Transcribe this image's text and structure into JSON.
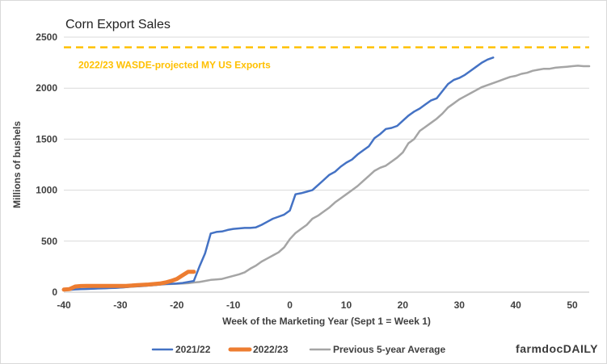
{
  "chart_data": {
    "type": "line",
    "title": "Corn Export Sales",
    "xlabel": "Week of the Marketing Year (Sept 1 = Week 1)",
    "ylabel": "Millions of bushels",
    "xlim": [
      -40,
      53
    ],
    "ylim": [
      0,
      2500
    ],
    "xticks": [
      -40,
      -30,
      -20,
      -10,
      0,
      10,
      20,
      30,
      40,
      50
    ],
    "yticks": [
      0,
      500,
      1000,
      1500,
      2000,
      2500
    ],
    "grid": "horizontal",
    "legend": "bottom",
    "reference_line": {
      "label": "2022/23 WASDE-projected MY US Exports",
      "value": 2400,
      "color": "#FFC000",
      "style": "dashed"
    },
    "series": [
      {
        "name": "2021/22",
        "color": "#4472C4",
        "x": [
          -40,
          -39,
          -38,
          -37,
          -36,
          -35,
          -34,
          -33,
          -32,
          -31,
          -30,
          -29,
          -28,
          -27,
          -26,
          -25,
          -24,
          -23,
          -22,
          -21,
          -20,
          -19,
          -18,
          -17,
          -16,
          -15,
          -14,
          -13,
          -12,
          -11,
          -10,
          -9,
          -8,
          -7,
          -6,
          -5,
          -4,
          -3,
          -2,
          -1,
          0,
          1,
          2,
          3,
          4,
          5,
          6,
          7,
          8,
          9,
          10,
          11,
          12,
          13,
          14,
          15,
          16,
          17,
          18,
          19,
          20,
          21,
          22,
          23,
          24,
          25,
          26,
          27,
          28,
          29,
          30,
          31,
          32,
          33,
          34,
          35,
          36
        ],
        "values": [
          20,
          22,
          28,
          30,
          32,
          34,
          36,
          38,
          40,
          42,
          45,
          50,
          55,
          58,
          60,
          65,
          70,
          75,
          80,
          82,
          85,
          90,
          100,
          110,
          250,
          380,
          575,
          590,
          595,
          610,
          620,
          625,
          630,
          630,
          635,
          660,
          690,
          720,
          740,
          760,
          800,
          960,
          970,
          985,
          1000,
          1050,
          1100,
          1150,
          1180,
          1230,
          1270,
          1300,
          1350,
          1390,
          1430,
          1510,
          1550,
          1600,
          1610,
          1630,
          1680,
          1730,
          1770,
          1800,
          1840,
          1880,
          1900,
          1970,
          2040,
          2080,
          2100,
          2130,
          2170,
          2210,
          2250,
          2280,
          2300
        ]
      },
      {
        "name": "2022/23",
        "color": "#ED7D31",
        "x": [
          -40,
          -39,
          -38,
          -37,
          -36,
          -35,
          -34,
          -33,
          -32,
          -31,
          -30,
          -29,
          -28,
          -27,
          -26,
          -25,
          -24,
          -23,
          -22,
          -21,
          -20,
          -19,
          -18,
          -17
        ],
        "values": [
          25,
          30,
          55,
          60,
          62,
          62,
          62,
          62,
          62,
          62,
          62,
          62,
          65,
          70,
          72,
          75,
          80,
          85,
          95,
          110,
          130,
          165,
          200,
          200
        ]
      },
      {
        "name": "Previous 5-year Average",
        "color": "#A5A5A5",
        "x": [
          -40,
          -39,
          -38,
          -37,
          -36,
          -35,
          -34,
          -33,
          -32,
          -31,
          -30,
          -29,
          -28,
          -27,
          -26,
          -25,
          -24,
          -23,
          -22,
          -21,
          -20,
          -19,
          -18,
          -17,
          -16,
          -15,
          -14,
          -13,
          -12,
          -11,
          -10,
          -9,
          -8,
          -7,
          -6,
          -5,
          -4,
          -3,
          -2,
          -1,
          0,
          1,
          2,
          3,
          4,
          5,
          6,
          7,
          8,
          9,
          10,
          11,
          12,
          13,
          14,
          15,
          16,
          17,
          18,
          19,
          20,
          21,
          22,
          23,
          24,
          25,
          26,
          27,
          28,
          29,
          30,
          31,
          32,
          33,
          34,
          35,
          36,
          37,
          38,
          39,
          40,
          41,
          42,
          43,
          44,
          45,
          46,
          47,
          48,
          49,
          50,
          51,
          52,
          53
        ],
        "values": [
          25,
          25,
          28,
          30,
          32,
          34,
          36,
          38,
          40,
          43,
          46,
          50,
          54,
          58,
          62,
          66,
          70,
          74,
          78,
          80,
          82,
          85,
          88,
          95,
          100,
          110,
          120,
          125,
          130,
          145,
          160,
          175,
          195,
          230,
          260,
          300,
          330,
          360,
          390,
          440,
          520,
          580,
          620,
          660,
          720,
          750,
          790,
          830,
          880,
          920,
          960,
          1000,
          1040,
          1090,
          1140,
          1190,
          1220,
          1240,
          1280,
          1320,
          1370,
          1460,
          1500,
          1580,
          1620,
          1660,
          1700,
          1750,
          1810,
          1850,
          1890,
          1920,
          1950,
          1980,
          2010,
          2030,
          2050,
          2070,
          2090,
          2110,
          2120,
          2140,
          2150,
          2170,
          2180,
          2190,
          2190,
          2200,
          2205,
          2210,
          2215,
          2220,
          2215,
          2215
        ]
      }
    ]
  },
  "brand": {
    "part1": "farmdoc",
    "part2": "DAILY"
  }
}
